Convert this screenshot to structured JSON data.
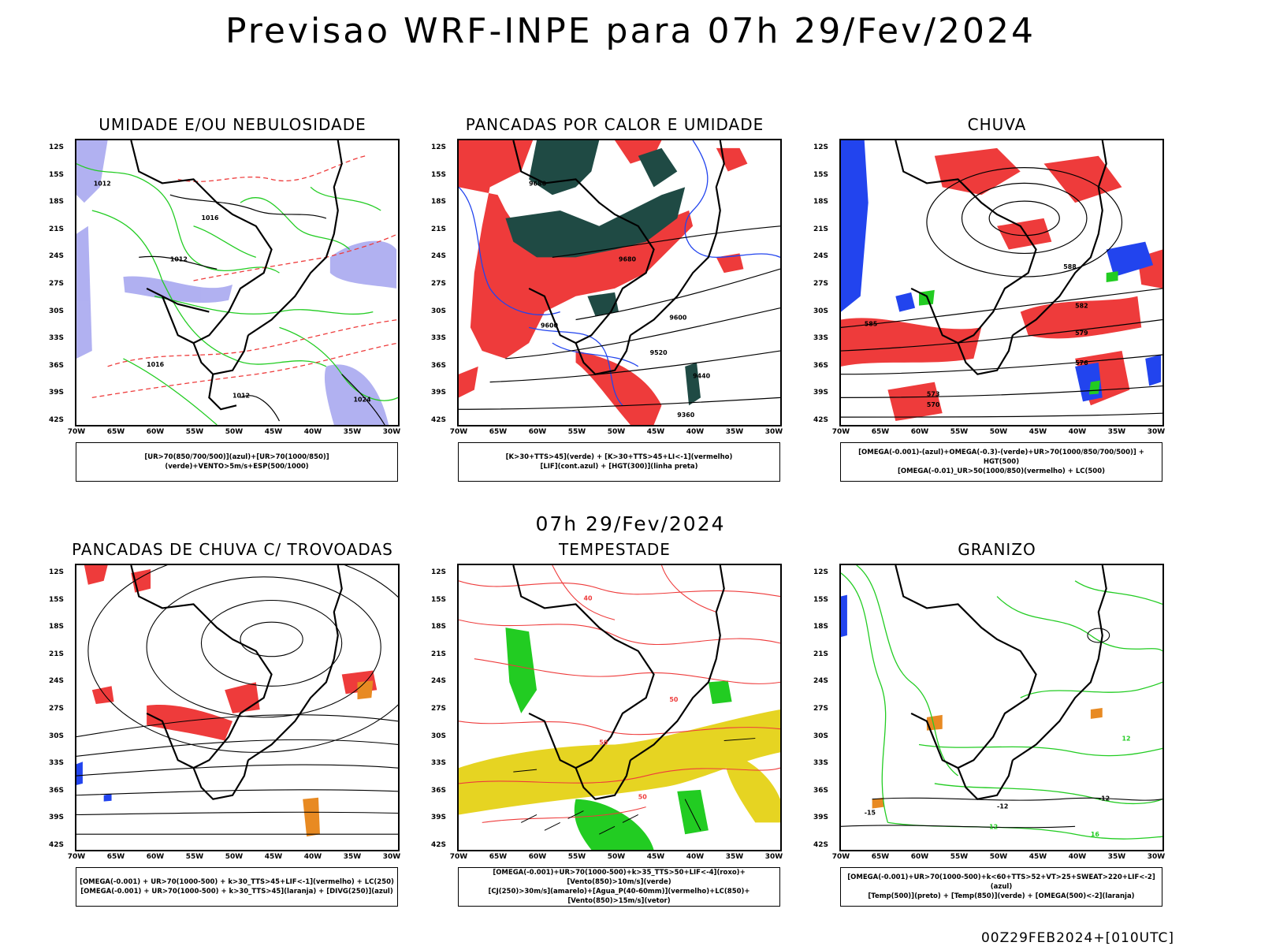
{
  "title": "Previsao WRF-INPE  para 07h 29/Fev/2024",
  "subtitle": "07h 29/Fev/2024",
  "footer": "00Z29FEB2024+[010UTC]",
  "lat_labels": [
    "12S",
    "15S",
    "18S",
    "21S",
    "24S",
    "27S",
    "30S",
    "33S",
    "36S",
    "39S",
    "42S"
  ],
  "lon_labels": [
    "70W",
    "65W",
    "60W",
    "55W",
    "50W",
    "45W",
    "40W",
    "35W",
    "30W"
  ],
  "colors": {
    "red": "#ee3b3b",
    "green": "#22cc22",
    "blue": "#2244ee",
    "lavender": "#a8a8f0",
    "darkgreen": "#1f4a44",
    "yellow": "#e6d422",
    "orange": "#e88a22",
    "contour": "#000000"
  },
  "panels": [
    {
      "title": "UMIDADE E/OU NEBULOSIDADE",
      "legend": [
        "[UR>70(850/700/500)](azul)+[UR>70(1000/850)](verde)+VENTO>5m/s+ESP(500/1000)"
      ],
      "contour_labels": [
        "1012",
        "1012",
        "1016",
        "1016",
        "1012",
        "1024"
      ]
    },
    {
      "title": "PANCADAS POR CALOR E UMIDADE",
      "legend": [
        "[K>30+TTS>45](verde) + [K>30+TTS>45+LI<-1](vermelho)",
        "[LIF](cont.azul) + [HGT(300)](linha preta)"
      ],
      "contour_labels": [
        "9680",
        "9600",
        "9520",
        "9440",
        "9360",
        "9600",
        "9680"
      ]
    },
    {
      "title": "CHUVA",
      "legend": [
        "[OMEGA(-0.001)-(azul)+OMEGA(-0.3)-(verde)+UR>70(1000/850/700/500)] + HGT(500)",
        "[OMEGA(-0.01)_UR>50(1000/850)(vermelho) + LC(500)"
      ],
      "contour_labels": [
        "588",
        "585",
        "582",
        "579",
        "576",
        "573",
        "570"
      ]
    },
    {
      "title": "PANCADAS DE CHUVA C/ TROVOADAS",
      "legend": [
        "[OMEGA(-0.001) + UR>70(1000-500) + k>30_TTS>45+LIF<-1](vermelho) + LC(250)",
        "[OMEGA(-0.001) + UR>70(1000-500) + k>30_TTS>45](laranja) + [DIVG(250)](azul)"
      ],
      "contour_labels": []
    },
    {
      "title": "TEMPESTADE",
      "legend": [
        "[OMEGA(-0.001)+UR>70(1000-500)+k>35_TTS>50+LIF<-4](roxo)+[Vento(850)>10m/s](verde)",
        "[CJ(250)>30m/s](amarelo)+[Agua_P(40-60mm)](vermelho)+LC(850)+[Vento(850)>15m/s](vetor)"
      ],
      "contour_labels": [
        "40",
        "50",
        "50",
        "50"
      ]
    },
    {
      "title": "GRANIZO",
      "legend": [
        "[OMEGA(-0.001)+UR>70(1000-500)+k<60+TTS>52+VT>25+SWEAT>220+LIF<-2](azul)",
        "[Temp(500)](preto) + [Temp(850)](verde) + [OMEGA(500)<-2](laranja)"
      ],
      "contour_labels": [
        "-12",
        "-15",
        "-12",
        "12",
        "16",
        "12"
      ]
    }
  ]
}
